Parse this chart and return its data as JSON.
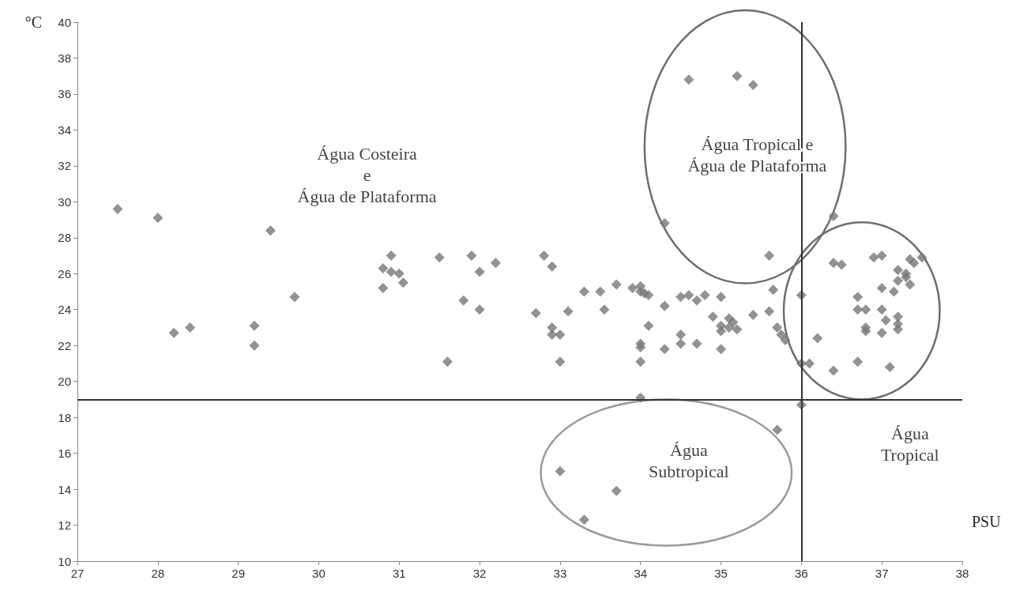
{
  "chart_data": {
    "type": "scatter",
    "xlabel": "PSU",
    "ylabel": "°C",
    "xlim": [
      27,
      38
    ],
    "xticks": [
      27,
      28,
      29,
      30,
      31,
      32,
      33,
      34,
      35,
      36,
      37,
      38
    ],
    "ylim": [
      10,
      40
    ],
    "yticks": [
      10,
      12,
      14,
      16,
      18,
      20,
      22,
      24,
      26,
      28,
      30,
      32,
      34,
      36,
      38,
      40
    ],
    "grid": false,
    "marker": "diamond",
    "series": [
      {
        "color": "#777777",
        "x": [
          27.5,
          28.0,
          28.2,
          28.4,
          29.2,
          29.2,
          29.4,
          29.7,
          30.8,
          30.8,
          30.9,
          30.9,
          31.0,
          31.05,
          31.5,
          31.6,
          31.8,
          31.9,
          32.0,
          32.0,
          32.2,
          32.7,
          32.8,
          32.9,
          32.9,
          32.9,
          33.0,
          33.0,
          33.1,
          33.3,
          33.5,
          33.55,
          33.7,
          33.9,
          34.0,
          34.0,
          34.05,
          34.1,
          34.0,
          34.0,
          34.0,
          34.0,
          34.1,
          34.3,
          34.3,
          34.3,
          34.5,
          34.5,
          34.5,
          34.6,
          34.7,
          34.7,
          34.8,
          34.9,
          35.0,
          35.0,
          35.0,
          35.0,
          35.1,
          35.1,
          35.15,
          35.2,
          35.4,
          35.6,
          35.6,
          35.65,
          35.7,
          35.75,
          35.8,
          36.0,
          36.0,
          36.1,
          36.2,
          36.0,
          35.7,
          34.6,
          35.2,
          35.4,
          33.0,
          33.3,
          33.7,
          36.4,
          36.4,
          36.5,
          36.4,
          36.7,
          36.7,
          36.7,
          36.8,
          36.8,
          36.8,
          36.9,
          37.0,
          37.0,
          37.0,
          37.0,
          37.05,
          37.1,
          37.15,
          37.2,
          37.2,
          37.2,
          37.2,
          37.2,
          37.3,
          37.3,
          37.35,
          37.35,
          37.4,
          37.5
        ],
        "values": [
          29.6,
          29.1,
          22.7,
          23.0,
          23.1,
          22.0,
          28.4,
          24.7,
          26.3,
          25.2,
          27.0,
          26.1,
          26.0,
          25.5,
          26.9,
          21.1,
          24.5,
          27.0,
          26.1,
          24.0,
          26.6,
          23.8,
          27.0,
          26.4,
          23.0,
          22.6,
          22.6,
          21.1,
          23.9,
          25.0,
          25.0,
          24.0,
          25.4,
          25.2,
          25.3,
          25.0,
          24.9,
          24.8,
          22.1,
          21.9,
          21.1,
          19.1,
          23.1,
          24.2,
          21.8,
          28.8,
          24.7,
          22.6,
          22.1,
          24.8,
          24.5,
          22.1,
          24.8,
          23.6,
          24.7,
          23.1,
          22.8,
          21.8,
          23.5,
          23.0,
          23.3,
          22.9,
          23.7,
          27.0,
          23.9,
          25.1,
          23.0,
          22.6,
          22.3,
          24.8,
          21.0,
          21.0,
          22.4,
          18.7,
          17.3,
          36.8,
          37.0,
          36.5,
          15.0,
          12.3,
          13.9,
          29.2,
          26.6,
          26.5,
          20.6,
          24.7,
          24.0,
          21.1,
          24.0,
          23.0,
          22.8,
          26.9,
          27.0,
          25.2,
          24.0,
          22.7,
          23.4,
          20.8,
          25.0,
          25.6,
          26.2,
          23.6,
          23.2,
          22.9,
          25.8,
          26.0,
          25.4,
          26.8,
          26.6,
          26.9
        ]
      }
    ],
    "ref_lines": [
      {
        "axis": "y",
        "value": 19,
        "color": "#333333",
        "line_style": "solid"
      },
      {
        "axis": "x",
        "value": 36,
        "color": "#333333",
        "line_style": "solid"
      }
    ],
    "annotations": [
      "Água Costeira\ne\nÁgua de Plataforma",
      "Água Tropical e\nÁgua de Plataforma",
      "Água\nSubtropical",
      "Água\nTropical"
    ]
  }
}
